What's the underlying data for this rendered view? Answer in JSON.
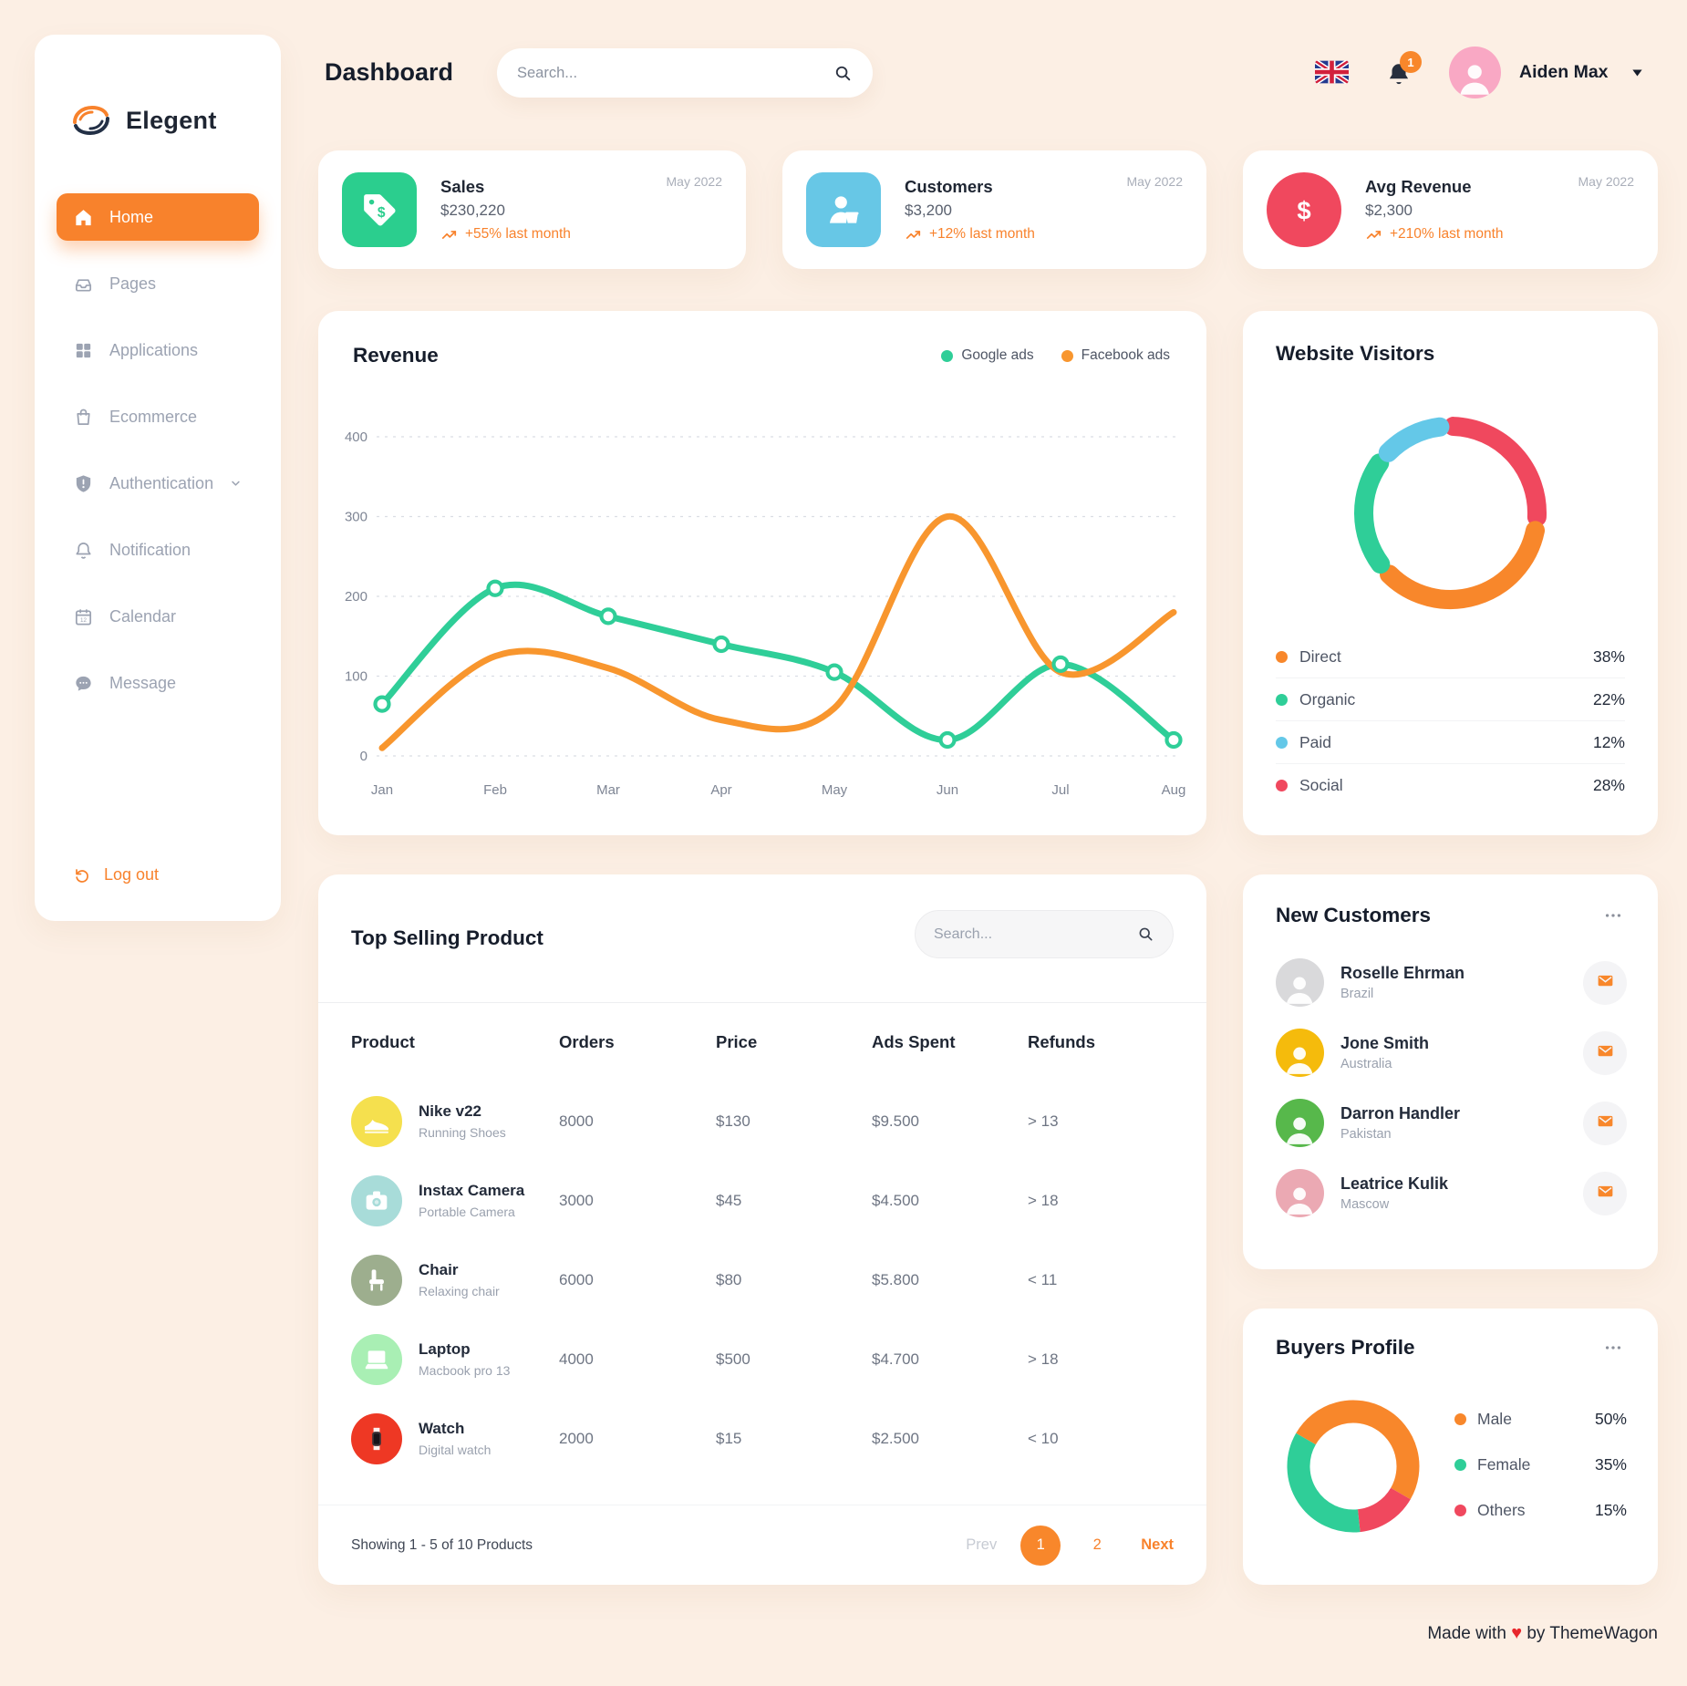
{
  "sidebar": {
    "brand": "Elegent",
    "items": [
      {
        "label": "Home",
        "icon": "home",
        "active": true
      },
      {
        "label": "Pages",
        "icon": "pages"
      },
      {
        "label": "Applications",
        "icon": "apps"
      },
      {
        "label": "Ecommerce",
        "icon": "bag"
      },
      {
        "label": "Authentication",
        "icon": "shield",
        "chevron": true
      },
      {
        "label": "Notification",
        "icon": "bell"
      },
      {
        "label": "Calendar",
        "icon": "calendar"
      },
      {
        "label": "Message",
        "icon": "message"
      }
    ],
    "logout_label": "Log out"
  },
  "topbar": {
    "title": "Dashboard",
    "search_placeholder": "Search...",
    "notification_count": "1",
    "user_name": "Aiden Max"
  },
  "stats": [
    {
      "title": "Sales",
      "date": "May 2022",
      "value": "$230,220",
      "trend": "+55% last month",
      "icon": "tag",
      "color": "#2BCE8E",
      "shape": "rounded"
    },
    {
      "title": "Customers",
      "date": "May 2022",
      "value": "$3,200",
      "trend": "+12% last month",
      "icon": "person-basket",
      "color": "#67C7E6",
      "shape": "rounded"
    },
    {
      "title": "Avg Revenue",
      "date": "May 2022",
      "value": "$2,300",
      "trend": "+210% last month",
      "icon": "dollar",
      "color": "#F0485E",
      "shape": "circle"
    }
  ],
  "chart_data": [
    {
      "type": "line",
      "title": "Revenue",
      "categories": [
        "Jan",
        "Feb",
        "Mar",
        "Apr",
        "May",
        "Jun",
        "Jul",
        "Aug"
      ],
      "yticks": [
        0,
        100,
        200,
        300,
        400
      ],
      "ylim": [
        0,
        400
      ],
      "grid": "dashed-horizontal",
      "legend_position": "top-right",
      "series": [
        {
          "name": "Google ads",
          "color": "#2FCE98",
          "markers": true,
          "values": [
            65,
            210,
            175,
            140,
            105,
            20,
            115,
            20
          ]
        },
        {
          "name": "Facebook ads",
          "color": "#F8962E",
          "markers": false,
          "values": [
            10,
            125,
            110,
            45,
            60,
            300,
            105,
            180
          ]
        }
      ]
    },
    {
      "type": "donut",
      "title": "Website Visitors",
      "segments": [
        {
          "label": "Direct",
          "value": 38,
          "color": "#F8872B"
        },
        {
          "label": "Organic",
          "value": 22,
          "color": "#2FCE98"
        },
        {
          "label": "Paid",
          "value": 12,
          "color": "#64C8E8"
        },
        {
          "label": "Social",
          "value": 28,
          "color": "#F0485E"
        }
      ],
      "pct_suffix": "%"
    },
    {
      "type": "donut",
      "title": "Buyers Profile",
      "segments": [
        {
          "label": "Male",
          "value": 50,
          "color": "#F8872B"
        },
        {
          "label": "Female",
          "value": 35,
          "color": "#2FCE98"
        },
        {
          "label": "Others",
          "value": 15,
          "color": "#F0485E"
        }
      ],
      "pct_suffix": "%"
    }
  ],
  "products": {
    "title": "Top Selling Product",
    "search_placeholder": "Search...",
    "columns": [
      "Product",
      "Orders",
      "Price",
      "Ads Spent",
      "Refunds"
    ],
    "rows": [
      {
        "name": "Nike v22",
        "sub": "Running Shoes",
        "icon": "shoe",
        "avatar_color": "#F5E04E",
        "orders": "8000",
        "price": "$130",
        "ads_spent": "$9.500",
        "refunds": "> 13"
      },
      {
        "name": "Instax Camera",
        "sub": "Portable Camera",
        "icon": "camera",
        "avatar_color": "#A8DCD9",
        "orders": "3000",
        "price": "$45",
        "ads_spent": "$4.500",
        "refunds": "> 18"
      },
      {
        "name": "Chair",
        "sub": "Relaxing chair",
        "icon": "chair",
        "avatar_color": "#9DAE8E",
        "orders": "6000",
        "price": "$80",
        "ads_spent": "$5.800",
        "refunds": "< 11"
      },
      {
        "name": "Laptop",
        "sub": "Macbook pro 13",
        "icon": "laptop",
        "avatar_color": "#A9EFB4",
        "orders": "4000",
        "price": "$500",
        "ads_spent": "$4.700",
        "refunds": "> 18"
      },
      {
        "name": "Watch",
        "sub": "Digital watch",
        "icon": "watch",
        "avatar_color": "#EE3824",
        "orders": "2000",
        "price": "$15",
        "ads_spent": "$2.500",
        "refunds": "< 10"
      }
    ],
    "showing_text": "Showing 1 - 5 of 10 Products",
    "pagination": {
      "prev": "Prev",
      "pages": [
        "1",
        "2"
      ],
      "active_page": "1",
      "next": "Next"
    }
  },
  "customers": {
    "title": "New Customers",
    "items": [
      {
        "name": "Roselle Ehrman",
        "country": "Brazil",
        "color": "#D9D9DB"
      },
      {
        "name": "Jone Smith",
        "country": "Australia",
        "color": "#F5BB0C"
      },
      {
        "name": "Darron Handler",
        "country": "Pakistan",
        "color": "#57B84B"
      },
      {
        "name": "Leatrice Kulik",
        "country": "Mascow",
        "color": "#EBA9B3"
      }
    ]
  },
  "footer": {
    "prefix": "Made with",
    "heart": "♥",
    "suffix": "by ThemeWagon"
  },
  "colors": {
    "accent_orange": "#F8822C",
    "green": "#2FCE98",
    "blue": "#64C8E8",
    "red": "#F0485E",
    "background": "#FCEFE4"
  }
}
